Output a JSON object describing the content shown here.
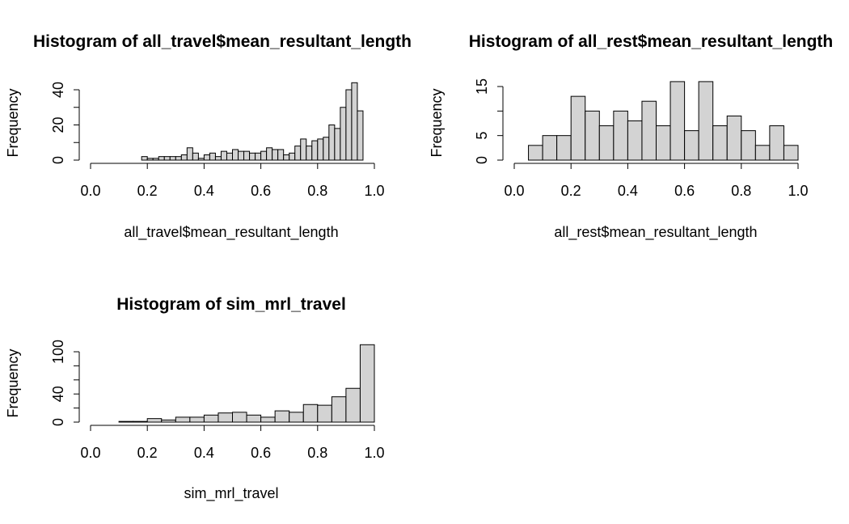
{
  "chart_data": [
    {
      "type": "bar",
      "title": "Histogram of all_travel$mean_resultant_length",
      "xlabel": "all_travel$mean_resultant_length",
      "ylabel": "Frequency",
      "xlim": [
        0,
        1
      ],
      "ylim": [
        0,
        45
      ],
      "x_ticks": [
        "0.0",
        "0.2",
        "0.4",
        "0.6",
        "0.8",
        "1.0"
      ],
      "y_ticks": [
        "0",
        "20",
        "40"
      ],
      "bin_width": 0.02,
      "bin_start": 0.18,
      "values": [
        2,
        1,
        1,
        2,
        2,
        2,
        2,
        3,
        7,
        4,
        1,
        3,
        4,
        2,
        5,
        4,
        6,
        5,
        5,
        4,
        4,
        5,
        7,
        6,
        6,
        3,
        4,
        8,
        12,
        8,
        11,
        12,
        13,
        20,
        18,
        30,
        40,
        44,
        28
      ]
    },
    {
      "type": "bar",
      "title": "Histogram of all_rest$mean_resultant_length",
      "xlabel": "all_rest$mean_resultant_length",
      "ylabel": "Frequency",
      "xlim": [
        0,
        1
      ],
      "ylim": [
        0,
        16
      ],
      "x_ticks": [
        "0.0",
        "0.2",
        "0.4",
        "0.6",
        "0.8",
        "1.0"
      ],
      "y_ticks": [
        "0",
        "5",
        "15"
      ],
      "bin_width": 0.05,
      "bin_start": 0.05,
      "values": [
        3,
        5,
        5,
        13,
        10,
        7,
        10,
        8,
        12,
        7,
        16,
        6,
        16,
        7,
        9,
        6,
        3,
        7,
        3
      ]
    },
    {
      "type": "bar",
      "title": "Histogram of sim_mrl_travel",
      "xlabel": "sim_mrl_travel",
      "ylabel": "Frequency",
      "xlim": [
        0,
        1
      ],
      "ylim": [
        0,
        110
      ],
      "x_ticks": [
        "0.0",
        "0.2",
        "0.4",
        "0.6",
        "0.8",
        "1.0"
      ],
      "y_ticks": [
        "0",
        "40",
        "100"
      ],
      "bin_width": 0.05,
      "bin_start": 0.1,
      "values": [
        1,
        1,
        5,
        3,
        7,
        7,
        10,
        13,
        14,
        10,
        7,
        16,
        14,
        25,
        24,
        36,
        48,
        110
      ]
    }
  ]
}
